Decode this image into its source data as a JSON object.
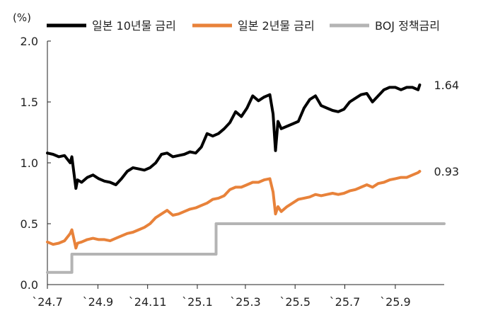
{
  "chart_data": {
    "type": "line",
    "unit_label": "(%)",
    "y_ticks": [
      "2.0",
      "1.5",
      "1.0",
      "0.5",
      "0.0"
    ],
    "ylim": [
      0,
      2.0
    ],
    "x_ticks": [
      "`24.7",
      "`24.9",
      "`24.11",
      "`25.1",
      "`25.3",
      "`25.5",
      "`25.7",
      "`25.9"
    ],
    "xlim": [
      "2024-07-01",
      "2025-10-31"
    ],
    "grid": false,
    "legend_position": "top",
    "series": [
      {
        "name": "일본 10년물 금리",
        "color": "#000000",
        "end_label": "1.64",
        "points": [
          [
            "2024-07-01",
            1.08
          ],
          [
            "2024-07-08",
            1.07
          ],
          [
            "2024-07-15",
            1.05
          ],
          [
            "2024-07-22",
            1.06
          ],
          [
            "2024-07-29",
            1.0
          ],
          [
            "2024-07-31",
            1.05
          ],
          [
            "2024-08-05",
            0.79
          ],
          [
            "2024-08-07",
            0.86
          ],
          [
            "2024-08-12",
            0.84
          ],
          [
            "2024-08-19",
            0.88
          ],
          [
            "2024-08-26",
            0.9
          ],
          [
            "2024-09-02",
            0.87
          ],
          [
            "2024-09-09",
            0.85
          ],
          [
            "2024-09-16",
            0.84
          ],
          [
            "2024-09-23",
            0.82
          ],
          [
            "2024-09-30",
            0.87
          ],
          [
            "2024-10-07",
            0.93
          ],
          [
            "2024-10-14",
            0.96
          ],
          [
            "2024-10-21",
            0.95
          ],
          [
            "2024-10-28",
            0.94
          ],
          [
            "2024-11-04",
            0.96
          ],
          [
            "2024-11-11",
            1.0
          ],
          [
            "2024-11-18",
            1.07
          ],
          [
            "2024-11-25",
            1.08
          ],
          [
            "2024-12-02",
            1.05
          ],
          [
            "2024-12-09",
            1.06
          ],
          [
            "2024-12-16",
            1.07
          ],
          [
            "2024-12-23",
            1.09
          ],
          [
            "2024-12-30",
            1.08
          ],
          [
            "2025-01-06",
            1.13
          ],
          [
            "2025-01-13",
            1.24
          ],
          [
            "2025-01-20",
            1.22
          ],
          [
            "2025-01-27",
            1.24
          ],
          [
            "2025-02-03",
            1.28
          ],
          [
            "2025-02-10",
            1.33
          ],
          [
            "2025-02-17",
            1.42
          ],
          [
            "2025-02-24",
            1.38
          ],
          [
            "2025-03-03",
            1.45
          ],
          [
            "2025-03-10",
            1.55
          ],
          [
            "2025-03-17",
            1.51
          ],
          [
            "2025-03-24",
            1.54
          ],
          [
            "2025-03-31",
            1.56
          ],
          [
            "2025-04-04",
            1.4
          ],
          [
            "2025-04-07",
            1.1
          ],
          [
            "2025-04-10",
            1.34
          ],
          [
            "2025-04-14",
            1.28
          ],
          [
            "2025-04-21",
            1.3
          ],
          [
            "2025-04-28",
            1.32
          ],
          [
            "2025-05-05",
            1.34
          ],
          [
            "2025-05-12",
            1.45
          ],
          [
            "2025-05-19",
            1.52
          ],
          [
            "2025-05-26",
            1.55
          ],
          [
            "2025-06-02",
            1.47
          ],
          [
            "2025-06-09",
            1.45
          ],
          [
            "2025-06-16",
            1.43
          ],
          [
            "2025-06-23",
            1.42
          ],
          [
            "2025-06-30",
            1.44
          ],
          [
            "2025-07-07",
            1.5
          ],
          [
            "2025-07-14",
            1.53
          ],
          [
            "2025-07-21",
            1.56
          ],
          [
            "2025-07-28",
            1.57
          ],
          [
            "2025-08-04",
            1.5
          ],
          [
            "2025-08-11",
            1.55
          ],
          [
            "2025-08-18",
            1.6
          ],
          [
            "2025-08-25",
            1.62
          ],
          [
            "2025-09-01",
            1.62
          ],
          [
            "2025-09-08",
            1.6
          ],
          [
            "2025-09-15",
            1.62
          ],
          [
            "2025-09-22",
            1.62
          ],
          [
            "2025-09-29",
            1.6
          ],
          [
            "2025-10-01",
            1.64
          ]
        ]
      },
      {
        "name": "일본 2년물 금리",
        "color": "#e8823a",
        "end_label": "0.93",
        "points": [
          [
            "2024-07-01",
            0.35
          ],
          [
            "2024-07-08",
            0.33
          ],
          [
            "2024-07-15",
            0.34
          ],
          [
            "2024-07-22",
            0.36
          ],
          [
            "2024-07-29",
            0.42
          ],
          [
            "2024-07-31",
            0.45
          ],
          [
            "2024-08-05",
            0.3
          ],
          [
            "2024-08-07",
            0.34
          ],
          [
            "2024-08-12",
            0.35
          ],
          [
            "2024-08-19",
            0.37
          ],
          [
            "2024-08-26",
            0.38
          ],
          [
            "2024-09-02",
            0.37
          ],
          [
            "2024-09-09",
            0.37
          ],
          [
            "2024-09-16",
            0.36
          ],
          [
            "2024-09-23",
            0.38
          ],
          [
            "2024-09-30",
            0.4
          ],
          [
            "2024-10-07",
            0.42
          ],
          [
            "2024-10-14",
            0.43
          ],
          [
            "2024-10-21",
            0.45
          ],
          [
            "2024-10-28",
            0.47
          ],
          [
            "2024-11-04",
            0.5
          ],
          [
            "2024-11-11",
            0.55
          ],
          [
            "2024-11-18",
            0.58
          ],
          [
            "2024-11-25",
            0.61
          ],
          [
            "2024-12-02",
            0.57
          ],
          [
            "2024-12-09",
            0.58
          ],
          [
            "2024-12-16",
            0.6
          ],
          [
            "2024-12-23",
            0.62
          ],
          [
            "2024-12-30",
            0.63
          ],
          [
            "2025-01-06",
            0.65
          ],
          [
            "2025-01-13",
            0.67
          ],
          [
            "2025-01-20",
            0.7
          ],
          [
            "2025-01-27",
            0.71
          ],
          [
            "2025-02-03",
            0.73
          ],
          [
            "2025-02-10",
            0.78
          ],
          [
            "2025-02-17",
            0.8
          ],
          [
            "2025-02-24",
            0.8
          ],
          [
            "2025-03-03",
            0.82
          ],
          [
            "2025-03-10",
            0.84
          ],
          [
            "2025-03-17",
            0.84
          ],
          [
            "2025-03-24",
            0.86
          ],
          [
            "2025-03-31",
            0.87
          ],
          [
            "2025-04-04",
            0.76
          ],
          [
            "2025-04-07",
            0.58
          ],
          [
            "2025-04-10",
            0.64
          ],
          [
            "2025-04-14",
            0.6
          ],
          [
            "2025-04-21",
            0.64
          ],
          [
            "2025-04-28",
            0.67
          ],
          [
            "2025-05-05",
            0.7
          ],
          [
            "2025-05-12",
            0.71
          ],
          [
            "2025-05-19",
            0.72
          ],
          [
            "2025-05-26",
            0.74
          ],
          [
            "2025-06-02",
            0.73
          ],
          [
            "2025-06-09",
            0.74
          ],
          [
            "2025-06-16",
            0.75
          ],
          [
            "2025-06-23",
            0.74
          ],
          [
            "2025-06-30",
            0.75
          ],
          [
            "2025-07-07",
            0.77
          ],
          [
            "2025-07-14",
            0.78
          ],
          [
            "2025-07-21",
            0.8
          ],
          [
            "2025-07-28",
            0.82
          ],
          [
            "2025-08-04",
            0.8
          ],
          [
            "2025-08-11",
            0.83
          ],
          [
            "2025-08-18",
            0.84
          ],
          [
            "2025-08-25",
            0.86
          ],
          [
            "2025-09-01",
            0.87
          ],
          [
            "2025-09-08",
            0.88
          ],
          [
            "2025-09-15",
            0.88
          ],
          [
            "2025-09-22",
            0.9
          ],
          [
            "2025-09-29",
            0.92
          ],
          [
            "2025-10-01",
            0.93
          ]
        ]
      },
      {
        "name": "BOJ 정책금리",
        "color": "#b4b4b4",
        "step": true,
        "points": [
          [
            "2024-07-01",
            0.1
          ],
          [
            "2024-07-31",
            0.25
          ],
          [
            "2025-01-24",
            0.5
          ],
          [
            "2025-10-31",
            0.5
          ]
        ]
      }
    ]
  }
}
